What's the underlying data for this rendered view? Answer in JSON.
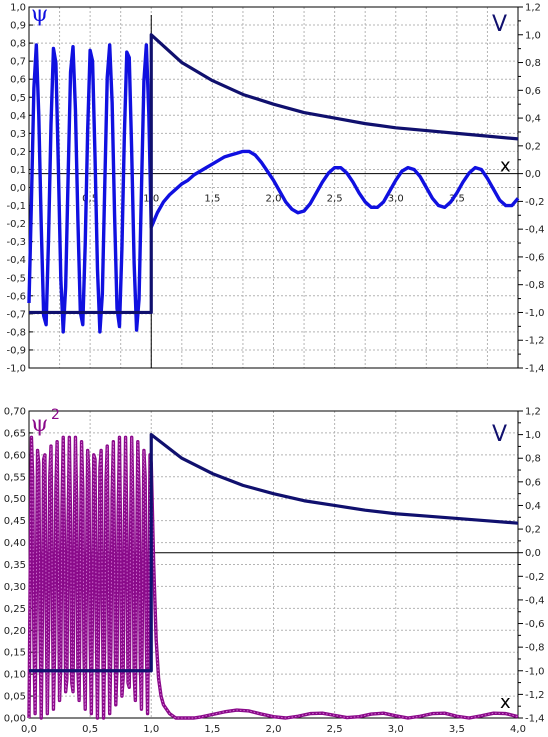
{
  "chart_data": [
    {
      "type": "line",
      "title": "",
      "left_axis_label": "ψ",
      "right_axis_label": "V",
      "x_axis_label": "x",
      "colors": {
        "psi": "#1010e0",
        "potential": "#10106e"
      },
      "x_range": [
        0.0,
        4.0
      ],
      "left_range": [
        -1.0,
        1.0
      ],
      "right_range": [
        -1.4,
        1.2
      ],
      "left_ticks": [
        "-1,0",
        "-0,9",
        "-0,8",
        "-0,7",
        "-0,6",
        "-0,5",
        "-0,4",
        "-0,3",
        "-0,2",
        "-0,1",
        "0,0",
        "0,1",
        "0,2",
        "0,3",
        "0,4",
        "0,5",
        "0,6",
        "0,7",
        "0,8",
        "0,9",
        "1,0"
      ],
      "left_tick_values": [
        -1.0,
        -0.9,
        -0.8,
        -0.7,
        -0.6,
        -0.5,
        -0.4,
        -0.3,
        -0.2,
        -0.1,
        0.0,
        0.1,
        0.2,
        0.3,
        0.4,
        0.5,
        0.6,
        0.7,
        0.8,
        0.9,
        1.0
      ],
      "right_ticks": [
        "-1,4",
        "-1,2",
        "-1,0",
        "-0,8",
        "-0,6",
        "-0,4",
        "-0,2",
        "0,0",
        "0,2",
        "0,4",
        "0,6",
        "0,8",
        "1,0",
        "1,2"
      ],
      "right_tick_values": [
        -1.4,
        -1.2,
        -1.0,
        -0.8,
        -0.6,
        -0.4,
        -0.2,
        0.0,
        0.2,
        0.4,
        0.6,
        0.8,
        1.0,
        1.2
      ],
      "x_ticks": [
        "0,5",
        "1,0",
        "1,5",
        "2,0",
        "2,5",
        "3,0",
        "3,5"
      ],
      "x_tick_values": [
        0.5,
        1.0,
        1.5,
        2.0,
        2.5,
        3.0,
        3.5
      ],
      "grid": true,
      "series": [
        {
          "name": "ψ",
          "x": [
            0.0,
            0.02,
            0.04,
            0.06,
            0.08,
            0.1,
            0.12,
            0.14,
            0.16,
            0.18,
            0.2,
            0.22,
            0.24,
            0.26,
            0.28,
            0.3,
            0.32,
            0.34,
            0.36,
            0.38,
            0.4,
            0.42,
            0.44,
            0.46,
            0.48,
            0.5,
            0.52,
            0.54,
            0.56,
            0.58,
            0.6,
            0.62,
            0.64,
            0.66,
            0.68,
            0.7,
            0.72,
            0.74,
            0.76,
            0.78,
            0.8,
            0.82,
            0.84,
            0.86,
            0.88,
            0.9,
            0.92,
            0.94,
            0.96,
            0.98,
            1.0,
            1.05,
            1.1,
            1.15,
            1.2,
            1.25,
            1.3,
            1.35,
            1.4,
            1.45,
            1.5,
            1.55,
            1.6,
            1.65,
            1.7,
            1.75,
            1.8,
            1.85,
            1.9,
            1.95,
            2.0,
            2.05,
            2.1,
            2.15,
            2.2,
            2.25,
            2.3,
            2.35,
            2.4,
            2.45,
            2.5,
            2.55,
            2.6,
            2.65,
            2.7,
            2.75,
            2.8,
            2.85,
            2.9,
            2.95,
            3.0,
            3.05,
            3.1,
            3.15,
            3.2,
            3.25,
            3.3,
            3.35,
            3.4,
            3.45,
            3.5,
            3.55,
            3.6,
            3.65,
            3.7,
            3.75,
            3.8,
            3.85,
            3.9,
            3.95,
            4.0
          ],
          "y": [
            -0.64,
            -0.07,
            0.55,
            0.79,
            0.4,
            -0.21,
            -0.71,
            -0.76,
            -0.28,
            0.35,
            0.77,
            0.69,
            0.12,
            -0.5,
            -0.8,
            -0.55,
            0.06,
            0.64,
            0.78,
            0.43,
            -0.18,
            -0.69,
            -0.76,
            -0.31,
            0.32,
            0.76,
            0.7,
            0.17,
            -0.45,
            -0.8,
            -0.59,
            0.02,
            0.61,
            0.79,
            0.47,
            -0.15,
            -0.67,
            -0.77,
            -0.34,
            0.29,
            0.75,
            0.72,
            0.2,
            -0.42,
            -0.79,
            -0.62,
            -0.01,
            0.59,
            0.79,
            0.41,
            -0.22,
            -0.14,
            -0.08,
            -0.04,
            -0.01,
            0.02,
            0.04,
            0.07,
            0.09,
            0.11,
            0.13,
            0.15,
            0.17,
            0.18,
            0.19,
            0.2,
            0.2,
            0.18,
            0.14,
            0.09,
            0.04,
            -0.02,
            -0.08,
            -0.12,
            -0.14,
            -0.13,
            -0.09,
            -0.03,
            0.03,
            0.08,
            0.11,
            0.11,
            0.08,
            0.03,
            -0.03,
            -0.08,
            -0.11,
            -0.11,
            -0.08,
            -0.02,
            0.04,
            0.09,
            0.11,
            0.1,
            0.06,
            0.0,
            -0.06,
            -0.1,
            -0.11,
            -0.08,
            -0.03,
            0.03,
            0.08,
            0.11,
            0.1,
            0.05,
            -0.01,
            -0.07,
            -0.1,
            -0.1,
            -0.06
          ]
        },
        {
          "name": "V",
          "x": [
            0.0,
            0.9999,
            1.0,
            1.25,
            1.5,
            1.75,
            2.0,
            2.25,
            2.5,
            2.75,
            3.0,
            3.25,
            3.5,
            3.75,
            4.0
          ],
          "y": [
            -1.0,
            -1.0,
            1.0,
            0.8,
            0.67,
            0.57,
            0.5,
            0.44,
            0.4,
            0.36,
            0.33,
            0.31,
            0.29,
            0.27,
            0.25
          ]
        }
      ]
    },
    {
      "type": "line",
      "title": "",
      "left_axis_label": "ψ",
      "left_axis_label_sup": "2",
      "right_axis_label": "V",
      "x_axis_label": "x",
      "colors": {
        "psi2": "#8a0a8a",
        "potential": "#10106e"
      },
      "x_range": [
        0.0,
        4.0
      ],
      "left_range": [
        0.0,
        0.7
      ],
      "right_range": [
        -1.4,
        1.2
      ],
      "left_ticks": [
        "0,00",
        "0,05",
        "0,10",
        "0,15",
        "0,20",
        "0,25",
        "0,30",
        "0,35",
        "0,40",
        "0,45",
        "0,50",
        "0,55",
        "0,60",
        "0,65",
        "0,70"
      ],
      "left_tick_values": [
        0.0,
        0.05,
        0.1,
        0.15,
        0.2,
        0.25,
        0.3,
        0.35,
        0.4,
        0.45,
        0.5,
        0.55,
        0.6,
        0.65,
        0.7
      ],
      "right_ticks": [
        "-1,4",
        "-1,2",
        "-1,0",
        "-0,8",
        "-0,6",
        "-0,4",
        "-0,2",
        "0,0",
        "0,2",
        "0,4",
        "0,6",
        "0,8",
        "1,0",
        "1,2"
      ],
      "right_tick_values": [
        -1.4,
        -1.2,
        -1.0,
        -0.8,
        -0.6,
        -0.4,
        -0.2,
        0.0,
        0.2,
        0.4,
        0.6,
        0.8,
        1.0,
        1.2
      ],
      "x_ticks": [
        "0,0",
        "0,5",
        "1,0",
        "1,5",
        "2,0",
        "2,5",
        "3,0",
        "3,5",
        "4,0"
      ],
      "x_tick_values": [
        0.0,
        0.5,
        1.0,
        1.5,
        2.0,
        2.5,
        3.0,
        3.5,
        4.0
      ],
      "grid": true,
      "series": [
        {
          "name": "ψ²",
          "x": [
            0.0,
            0.01,
            0.02,
            0.03,
            0.04,
            0.05,
            0.06,
            0.07,
            0.08,
            0.09,
            0.1,
            0.11,
            0.12,
            0.13,
            0.14,
            0.15,
            0.16,
            0.17,
            0.18,
            0.19,
            0.2,
            0.21,
            0.22,
            0.23,
            0.24,
            0.25,
            0.26,
            0.27,
            0.28,
            0.29,
            0.3,
            0.31,
            0.32,
            0.33,
            0.34,
            0.35,
            0.36,
            0.37,
            0.38,
            0.39,
            0.4,
            0.41,
            0.42,
            0.43,
            0.44,
            0.45,
            0.46,
            0.47,
            0.48,
            0.49,
            0.5,
            0.51,
            0.52,
            0.53,
            0.54,
            0.55,
            0.56,
            0.57,
            0.58,
            0.59,
            0.6,
            0.61,
            0.62,
            0.63,
            0.64,
            0.65,
            0.66,
            0.67,
            0.68,
            0.69,
            0.7,
            0.71,
            0.72,
            0.73,
            0.74,
            0.75,
            0.76,
            0.77,
            0.78,
            0.79,
            0.8,
            0.81,
            0.82,
            0.83,
            0.84,
            0.85,
            0.86,
            0.87,
            0.88,
            0.89,
            0.9,
            0.91,
            0.92,
            0.93,
            0.94,
            0.95,
            0.96,
            0.97,
            0.98,
            0.99,
            1.0,
            1.02,
            1.04,
            1.06,
            1.08,
            1.1,
            1.15,
            1.2,
            1.25,
            1.3,
            1.35,
            1.4,
            1.5,
            1.6,
            1.7,
            1.8,
            1.9,
            2.0,
            2.1,
            2.2,
            2.3,
            2.4,
            2.5,
            2.6,
            2.7,
            2.8,
            2.9,
            3.0,
            3.1,
            3.2,
            3.3,
            3.4,
            3.5,
            3.6,
            3.7,
            3.8,
            3.9,
            4.0
          ],
          "y": [
            0.0,
            0.34,
            0.64,
            0.55,
            0.18,
            0.01,
            0.29,
            0.61,
            0.58,
            0.22,
            0.0,
            0.24,
            0.59,
            0.6,
            0.27,
            0.01,
            0.2,
            0.55,
            0.62,
            0.31,
            0.02,
            0.16,
            0.52,
            0.63,
            0.36,
            0.04,
            0.12,
            0.48,
            0.64,
            0.4,
            0.06,
            0.09,
            0.44,
            0.64,
            0.45,
            0.08,
            0.06,
            0.4,
            0.64,
            0.49,
            0.11,
            0.04,
            0.35,
            0.63,
            0.52,
            0.14,
            0.02,
            0.31,
            0.61,
            0.56,
            0.18,
            0.01,
            0.27,
            0.6,
            0.59,
            0.22,
            0.0,
            0.23,
            0.57,
            0.61,
            0.26,
            0.0,
            0.19,
            0.54,
            0.62,
            0.3,
            0.01,
            0.16,
            0.51,
            0.63,
            0.35,
            0.03,
            0.12,
            0.47,
            0.64,
            0.39,
            0.05,
            0.09,
            0.43,
            0.64,
            0.44,
            0.08,
            0.07,
            0.39,
            0.64,
            0.48,
            0.1,
            0.04,
            0.34,
            0.63,
            0.52,
            0.13,
            0.02,
            0.3,
            0.61,
            0.55,
            0.17,
            0.01,
            0.26,
            0.6,
            0.58,
            0.35,
            0.18,
            0.09,
            0.05,
            0.03,
            0.01,
            0.0,
            0.0,
            0.0,
            0.0,
            0.002,
            0.008,
            0.014,
            0.018,
            0.016,
            0.009,
            0.003,
            0.0,
            0.004,
            0.01,
            0.011,
            0.006,
            0.001,
            0.003,
            0.009,
            0.011,
            0.005,
            0.0,
            0.004,
            0.01,
            0.011,
            0.004,
            0.0,
            0.005,
            0.011,
            0.01,
            0.003
          ]
        },
        {
          "name": "V",
          "x": [
            0.0,
            0.9999,
            1.0,
            1.25,
            1.5,
            1.75,
            2.0,
            2.25,
            2.5,
            2.75,
            3.0,
            3.25,
            3.5,
            3.75,
            4.0
          ],
          "y": [
            -1.0,
            -1.0,
            1.0,
            0.8,
            0.67,
            0.57,
            0.5,
            0.44,
            0.4,
            0.36,
            0.33,
            0.31,
            0.29,
            0.27,
            0.25
          ]
        }
      ]
    }
  ]
}
